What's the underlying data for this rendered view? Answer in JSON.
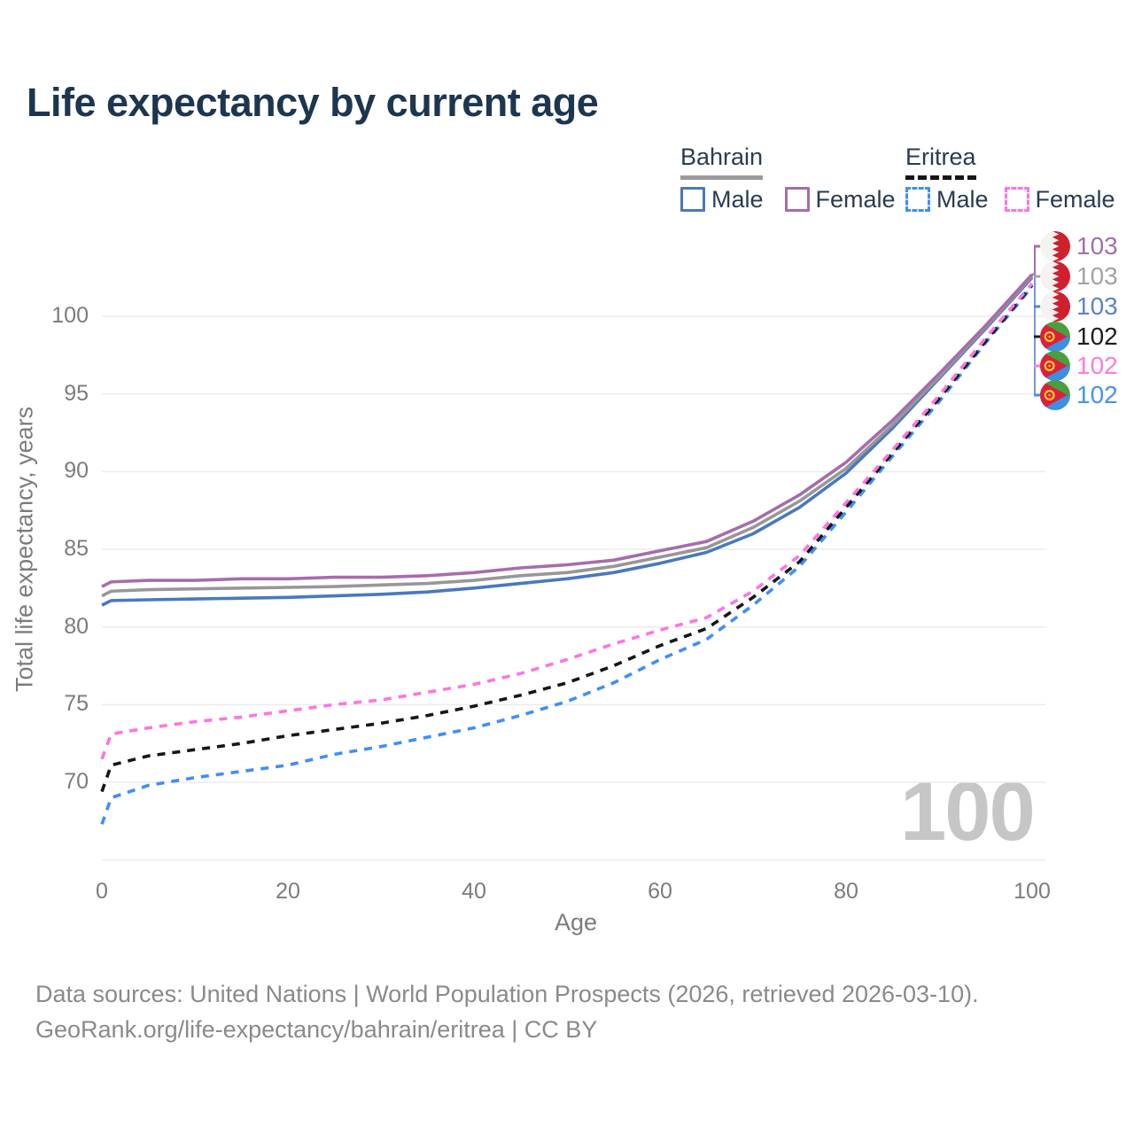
{
  "title": "Life expectancy by current age",
  "legend": {
    "groups": [
      {
        "label": "Bahrain",
        "line_style": "solid",
        "underline_color": "#9b9b9b",
        "items": [
          {
            "label": "Male",
            "color": "#4a78bf"
          },
          {
            "label": "Female",
            "color": "#a76cac"
          }
        ]
      },
      {
        "label": "Eritrea",
        "line_style": "dashed",
        "underline_color": "#161616",
        "items": [
          {
            "label": "Male",
            "color": "#3f8efc"
          },
          {
            "label": "Female",
            "color": "#ff74e0"
          }
        ]
      }
    ]
  },
  "watermark": "100",
  "footer": {
    "line1": "Data sources: United Nations | World Population Prospects (2026, retrieved 2026-03-10).",
    "line2": "GeoRank.org/life-expectancy/bahrain/eritrea | CC BY"
  },
  "chart_data": {
    "type": "line",
    "title": "Life expectancy by current age",
    "xlabel": "Age",
    "ylabel": "Total life expectancy, years",
    "xlim": [
      0,
      100
    ],
    "ylim": [
      65,
      105
    ],
    "x_ticks": [
      0,
      20,
      40,
      60,
      80,
      100
    ],
    "y_ticks": [
      70,
      75,
      80,
      85,
      90,
      95,
      100
    ],
    "y_grid_extra": [
      65
    ],
    "grid": "horizontal",
    "legend_position": "top-right",
    "x": [
      0,
      1,
      5,
      10,
      15,
      20,
      25,
      30,
      35,
      40,
      45,
      50,
      55,
      60,
      65,
      70,
      75,
      80,
      85,
      90,
      95,
      100
    ],
    "series": [
      {
        "name": "Eritrea Male",
        "country": "Eritrea",
        "sex": "Male",
        "color": "#3f8efc",
        "dashed": true,
        "values": [
          67.3,
          69.0,
          69.8,
          70.3,
          70.7,
          71.1,
          71.8,
          72.3,
          72.9,
          73.5,
          74.3,
          75.2,
          76.4,
          77.9,
          79.2,
          81.4,
          83.9,
          87.4,
          91.0,
          94.5,
          98.3,
          101.9
        ]
      },
      {
        "name": "Eritrea Both sexes",
        "country": "Eritrea",
        "sex": "Both",
        "color": "#161616",
        "dashed": true,
        "values": [
          69.4,
          71.1,
          71.7,
          72.1,
          72.5,
          73.0,
          73.4,
          73.8,
          74.3,
          74.9,
          75.6,
          76.4,
          77.5,
          78.8,
          79.9,
          81.9,
          84.2,
          87.7,
          91.2,
          94.7,
          98.4,
          102.0
        ]
      },
      {
        "name": "Eritrea Female",
        "country": "Eritrea",
        "sex": "Female",
        "color": "#ff74e0",
        "dashed": true,
        "values": [
          71.5,
          73.1,
          73.5,
          73.9,
          74.2,
          74.6,
          75.0,
          75.3,
          75.8,
          76.3,
          77.0,
          77.9,
          78.9,
          79.8,
          80.6,
          82.3,
          84.6,
          88.0,
          91.4,
          94.9,
          98.6,
          102.1
        ]
      },
      {
        "name": "Bahrain Male",
        "country": "Bahrain",
        "sex": "Male",
        "color": "#4a78bf",
        "dashed": false,
        "values": [
          81.4,
          81.7,
          81.75,
          81.8,
          81.85,
          81.9,
          82.0,
          82.1,
          82.25,
          82.5,
          82.8,
          83.1,
          83.5,
          84.1,
          84.8,
          86.0,
          87.7,
          89.9,
          92.8,
          96.0,
          99.2,
          102.5
        ]
      },
      {
        "name": "Bahrain Both sexes",
        "country": "Bahrain",
        "sex": "Both",
        "color": "#979797",
        "dashed": false,
        "values": [
          82.0,
          82.3,
          82.4,
          82.45,
          82.5,
          82.55,
          82.6,
          82.7,
          82.8,
          83.0,
          83.3,
          83.5,
          83.9,
          84.5,
          85.1,
          86.4,
          88.1,
          90.2,
          93.0,
          96.1,
          99.3,
          102.6
        ]
      },
      {
        "name": "Bahrain Female",
        "country": "Bahrain",
        "sex": "Female",
        "color": "#a76cac",
        "dashed": false,
        "values": [
          82.6,
          82.9,
          83.0,
          83.0,
          83.1,
          83.1,
          83.2,
          83.2,
          83.3,
          83.5,
          83.8,
          84.0,
          84.3,
          84.9,
          85.5,
          86.8,
          88.5,
          90.6,
          93.3,
          96.3,
          99.4,
          102.7
        ]
      }
    ],
    "end_labels": [
      {
        "value": "103",
        "color": "#a76cac",
        "flag": "bahrain",
        "series": "Bahrain Female"
      },
      {
        "value": "103",
        "color": "#a3a3a3",
        "flag": "bahrain",
        "series": "Bahrain Both sexes"
      },
      {
        "value": "103",
        "color": "#5b84c8",
        "flag": "bahrain",
        "series": "Bahrain Male"
      },
      {
        "value": "102",
        "color": "#1c1c1c",
        "flag": "eritrea",
        "series": "Eritrea Both sexes"
      },
      {
        "value": "102",
        "color": "#ff7ae0",
        "flag": "eritrea",
        "series": "Eritrea Female"
      },
      {
        "value": "102",
        "color": "#4691fb",
        "flag": "eritrea",
        "series": "Eritrea Male"
      }
    ]
  }
}
